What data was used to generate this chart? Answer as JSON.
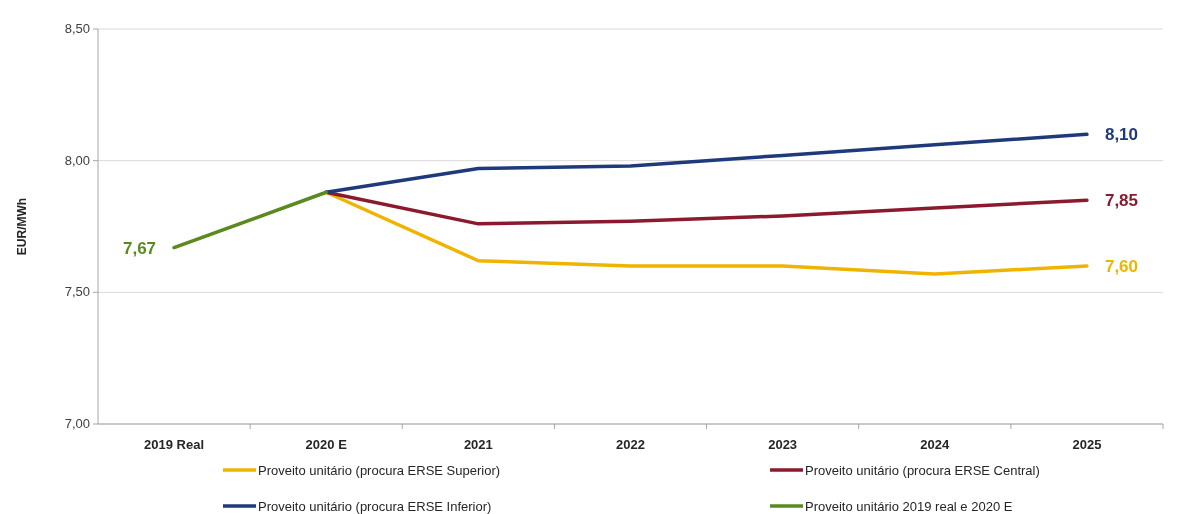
{
  "chart_data": {
    "type": "line",
    "ylabel": "EUR/MWh",
    "categories": [
      "2019 Real",
      "2020 E",
      "2021",
      "2022",
      "2023",
      "2024",
      "2025"
    ],
    "ylim": [
      7,
      8.5
    ],
    "yticks": [
      {
        "value": 7,
        "label": "7,00"
      },
      {
        "value": 7.5,
        "label": "7,50"
      },
      {
        "value": 8,
        "label": "8,00"
      },
      {
        "value": 8.5,
        "label": "8,50"
      }
    ],
    "grid": "y",
    "legend": "bottom",
    "marker": "none",
    "line_style": "solid",
    "series": [
      {
        "name": "Proveito unitário (procura ERSE Superior)",
        "color": "#f0b400",
        "values": [
          null,
          7.88,
          7.62,
          7.6,
          7.6,
          7.57,
          7.6
        ],
        "value_labels": [
          null,
          null,
          null,
          null,
          null,
          null,
          "7,60"
        ]
      },
      {
        "name": "Proveito unitário (procura ERSE Central)",
        "color": "#8b1a2e",
        "values": [
          null,
          7.88,
          7.76,
          7.77,
          7.79,
          7.82,
          7.85
        ],
        "value_labels": [
          null,
          null,
          null,
          null,
          null,
          null,
          "7,85"
        ]
      },
      {
        "name": "Proveito unitário (procura ERSE Inferior)",
        "color": "#1f3a7a",
        "values": [
          null,
          7.88,
          7.97,
          7.98,
          8.02,
          8.06,
          8.1
        ],
        "value_labels": [
          null,
          null,
          null,
          null,
          null,
          null,
          "8,10"
        ]
      },
      {
        "name": "Proveito unitário 2019 real e 2020 E",
        "color": "#5a8a1e",
        "values": [
          7.67,
          7.88,
          null,
          null,
          null,
          null,
          null
        ],
        "value_labels": [
          "7,67",
          null,
          null,
          null,
          null,
          null,
          null
        ]
      }
    ]
  }
}
